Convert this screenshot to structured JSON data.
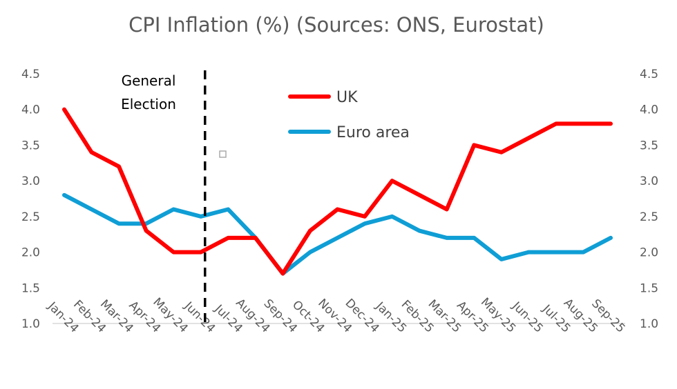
{
  "chart_data": {
    "type": "line",
    "title": "CPI Inflation (%) (Sources: ONS, Eurostat)",
    "categories": [
      "Jan-24",
      "Feb-24",
      "Mar-24",
      "Apr-24",
      "May-24",
      "Jun-24",
      "Jul-24",
      "Aug-24",
      "Sep-24",
      "Oct-24",
      "Nov-24",
      "Dec-24",
      "Jan-25",
      "Feb-25",
      "Mar-25",
      "Apr-25",
      "May-25",
      "Jun-25",
      "Jul-25",
      "Aug-25",
      "Sep-25"
    ],
    "series": [
      {
        "name": "UK",
        "color": "#ff0000",
        "values": [
          4.0,
          3.4,
          3.2,
          2.3,
          2.0,
          2.0,
          2.2,
          2.2,
          1.7,
          2.3,
          2.6,
          2.5,
          3.0,
          2.8,
          2.6,
          3.5,
          3.4,
          3.6,
          3.8,
          3.8,
          3.8
        ]
      },
      {
        "name": "Euro area",
        "color": "#0f9ed5",
        "values": [
          2.8,
          2.6,
          2.4,
          2.4,
          2.6,
          2.5,
          2.6,
          2.2,
          1.7,
          2.0,
          2.2,
          2.4,
          2.5,
          2.3,
          2.2,
          2.2,
          1.9,
          2.0,
          2.0,
          2.0,
          2.2
        ]
      }
    ],
    "ylim": [
      1.0,
      4.5
    ],
    "yticks": [
      "1.0",
      "1.5",
      "2.0",
      "2.5",
      "3.0",
      "3.5",
      "4.0",
      "4.5"
    ],
    "secondary_yticks": [
      "1.0",
      "1.5",
      "2.0",
      "2.5",
      "3.0",
      "3.5",
      "4.0",
      "4.5"
    ],
    "grid": false,
    "legend_position": "top-center",
    "annotation": {
      "text_lines": [
        "General",
        "Election"
      ],
      "after_category": "Jun-24"
    }
  }
}
